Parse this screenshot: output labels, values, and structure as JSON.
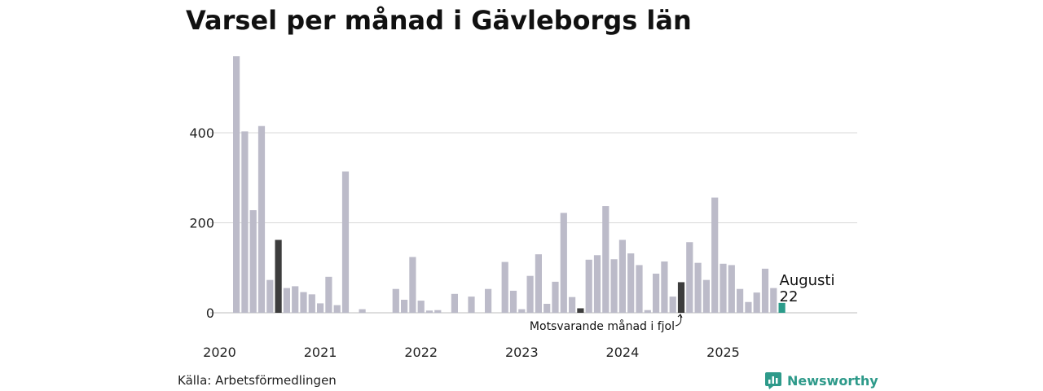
{
  "title": "Varsel per månad i Gävleborgs län",
  "source": "Källa: Arbetsförmedlingen",
  "brand": {
    "name": "Newsworthy",
    "icon": "newsworthy-logo-icon"
  },
  "colors": {
    "bar": "#bcbbc9",
    "same_month": "#3d3d3d",
    "current": "#2b9b8a",
    "grid": "#d9d9d9"
  },
  "chart_data": {
    "type": "bar",
    "title": "Varsel per månad i Gävleborgs län",
    "xlabel": "",
    "ylabel": "",
    "ylim": [
      0,
      580
    ],
    "yticks": [
      0,
      200,
      400
    ],
    "year_labels": [
      "2020",
      "2021",
      "2022",
      "2023",
      "2024",
      "2025"
    ],
    "x": [
      "2020-03",
      "2020-04",
      "2020-05",
      "2020-06",
      "2020-07",
      "2020-08",
      "2020-09",
      "2020-10",
      "2020-11",
      "2020-12",
      "2021-01",
      "2021-02",
      "2021-03",
      "2021-04",
      "2021-05",
      "2021-06",
      "2021-07",
      "2021-08",
      "2021-09",
      "2021-10",
      "2021-11",
      "2021-12",
      "2022-01",
      "2022-02",
      "2022-03",
      "2022-04",
      "2022-05",
      "2022-06",
      "2022-07",
      "2022-08",
      "2022-09",
      "2022-10",
      "2022-11",
      "2022-12",
      "2023-01",
      "2023-02",
      "2023-03",
      "2023-04",
      "2023-05",
      "2023-06",
      "2023-07",
      "2023-08",
      "2023-09",
      "2023-10",
      "2023-11",
      "2023-12",
      "2024-01",
      "2024-02",
      "2024-03",
      "2024-04",
      "2024-05",
      "2024-06",
      "2024-07",
      "2024-08",
      "2024-09",
      "2024-10",
      "2024-11",
      "2024-12",
      "2025-01",
      "2025-02",
      "2025-03",
      "2025-04",
      "2025-05",
      "2025-06",
      "2025-07",
      "2025-08"
    ],
    "values": [
      570,
      403,
      228,
      415,
      73,
      162,
      55,
      59,
      46,
      41,
      21,
      80,
      17,
      314,
      0,
      8,
      0,
      0,
      0,
      53,
      29,
      124,
      27,
      5,
      6,
      0,
      42,
      0,
      36,
      0,
      53,
      0,
      113,
      49,
      8,
      82,
      130,
      20,
      69,
      222,
      35,
      10,
      118,
      128,
      237,
      119,
      162,
      132,
      106,
      6,
      87,
      114,
      36,
      68,
      157,
      111,
      73,
      256,
      109,
      106,
      53,
      24,
      45,
      98,
      55,
      22
    ],
    "highlight_same_month": [
      "2020-08",
      "2022-08",
      "2023-08",
      "2024-08"
    ],
    "current": {
      "x": "2025-08",
      "label": "Augusti",
      "value": 22
    },
    "annotation": "Motsvarande månad i fjol"
  }
}
